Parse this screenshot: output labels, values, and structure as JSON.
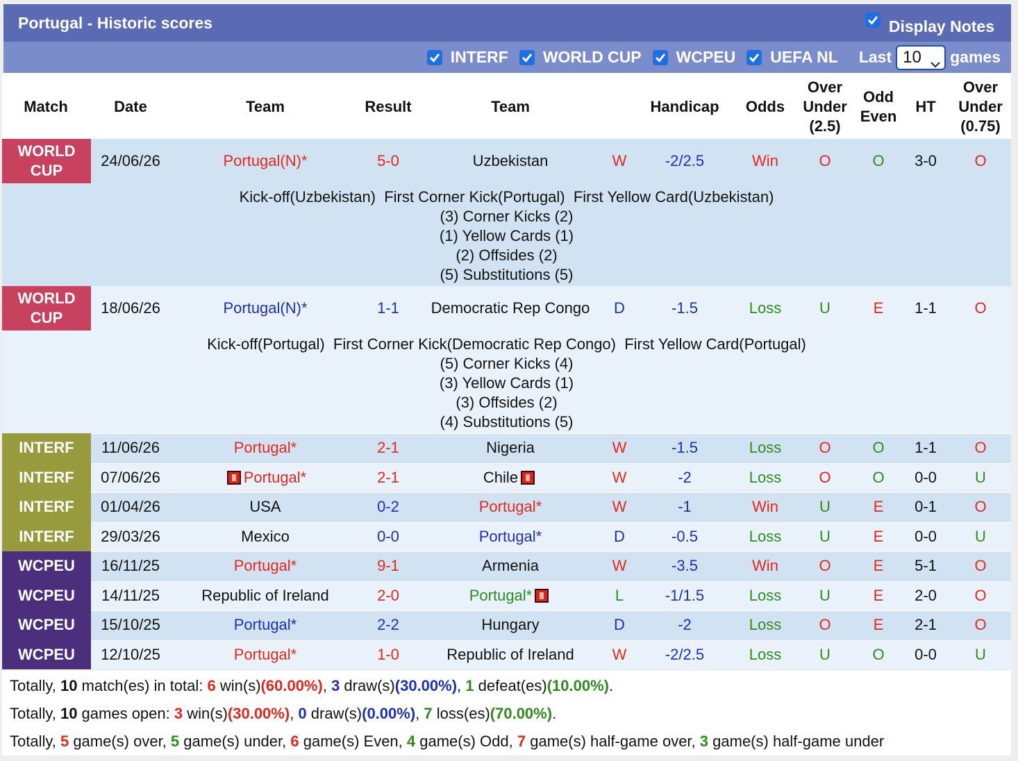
{
  "header": {
    "title": "Portugal - Historic scores",
    "display_notes": "Display Notes"
  },
  "filters": {
    "items": [
      "INTERF",
      "WORLD CUP",
      "WCPEU",
      "UEFA NL"
    ],
    "last": "Last",
    "count": "10",
    "games": "games"
  },
  "palette": {
    "r": "#e2281b",
    "g": "#2e8b1e",
    "b": "#1c2fb8",
    "k": "#111111"
  },
  "table": {
    "columns": [
      "Match",
      "Date",
      "Team",
      "Result",
      "Team",
      "Handicap",
      "Odds",
      "Over Under (2.5)",
      "Odd Even",
      "HT",
      "Over Under (0.75)"
    ],
    "rows": [
      {
        "match": "WORLD CUP",
        "badge_color": "#c8415f",
        "date": "24/06/26",
        "home": "Portugal(N)*",
        "result": "5-0",
        "away": "Uzbekistan",
        "outcome": "W",
        "handicap": "-2/2.5",
        "odds": "Win",
        "ou": "O",
        "oe": "O",
        "ht": "3-0",
        "ou075": "O",
        "tones": {
          "home": "r",
          "away": "k",
          "result": "r",
          "outcome": "r",
          "odds": "r",
          "ou": "r",
          "oe": "g",
          "ou075": "r"
        },
        "notes": [
          "Kick-off(Uzbekistan)  First Corner Kick(Portugal)  First Yellow Card(Uzbekistan)",
          "(3) Corner Kicks (2)",
          "(1) Yellow Cards (1)",
          "(2) Offsides (2)",
          "(5) Substitutions (5)"
        ]
      },
      {
        "match": "WORLD CUP",
        "badge_color": "#c8415f",
        "date": "18/06/26",
        "home": "Portugal(N)*",
        "result": "1-1",
        "away": "Democratic Rep Congo",
        "outcome": "D",
        "handicap": "-1.5",
        "odds": "Loss",
        "ou": "U",
        "oe": "E",
        "ht": "1-1",
        "ou075": "O",
        "tones": {
          "home": "b",
          "away": "k",
          "result": "b",
          "outcome": "b",
          "odds": "g",
          "ou": "g",
          "oe": "r",
          "ou075": "r"
        },
        "notes": [
          "Kick-off(Portugal)  First Corner Kick(Democratic Rep Congo)  First Yellow Card(Portugal)",
          "(5) Corner Kicks (4)",
          "(3) Yellow Cards (1)",
          "(3) Offsides (2)",
          "(4) Substitutions (5)"
        ]
      },
      {
        "match": "INTERF",
        "badge_color": "#979b3d",
        "date": "11/06/26",
        "home": "Portugal*",
        "result": "2-1",
        "away": "Nigeria",
        "outcome": "W",
        "handicap": "-1.5",
        "odds": "Loss",
        "ou": "O",
        "oe": "O",
        "ht": "1-1",
        "ou075": "O",
        "tones": {
          "home": "r",
          "away": "k",
          "result": "r",
          "outcome": "r",
          "odds": "g",
          "ou": "r",
          "oe": "g",
          "ou075": "r"
        }
      },
      {
        "match": "INTERF",
        "badge_color": "#979b3d",
        "date": "07/06/26",
        "home": "Portugal*",
        "result": "2-1",
        "away": "Chile",
        "outcome": "W",
        "handicap": "-2",
        "odds": "Loss",
        "ou": "O",
        "oe": "O",
        "ht": "0-0",
        "ou075": "U",
        "home_card": true,
        "away_card": true,
        "tones": {
          "home": "r",
          "away": "k",
          "result": "r",
          "outcome": "r",
          "odds": "g",
          "ou": "r",
          "oe": "g",
          "ou075": "g"
        }
      },
      {
        "match": "INTERF",
        "badge_color": "#979b3d",
        "date": "01/04/26",
        "home": "USA",
        "result": "0-2",
        "away": "Portugal*",
        "outcome": "W",
        "handicap": "-1",
        "odds": "Win",
        "ou": "U",
        "oe": "E",
        "ht": "0-1",
        "ou075": "O",
        "tones": {
          "home": "k",
          "away": "r",
          "result": "b",
          "outcome": "r",
          "odds": "r",
          "ou": "g",
          "oe": "r",
          "ou075": "r"
        }
      },
      {
        "match": "INTERF",
        "badge_color": "#979b3d",
        "date": "29/03/26",
        "home": "Mexico",
        "result": "0-0",
        "away": "Portugal*",
        "outcome": "D",
        "handicap": "-0.5",
        "odds": "Loss",
        "ou": "U",
        "oe": "E",
        "ht": "0-0",
        "ou075": "U",
        "tones": {
          "home": "k",
          "away": "b",
          "result": "b",
          "outcome": "b",
          "odds": "g",
          "ou": "g",
          "oe": "r",
          "ou075": "g"
        }
      },
      {
        "match": "WCPEU",
        "badge_color": "#4b2f7c",
        "date": "16/11/25",
        "home": "Portugal*",
        "result": "9-1",
        "away": "Armenia",
        "outcome": "W",
        "handicap": "-3.5",
        "odds": "Win",
        "ou": "O",
        "oe": "E",
        "ht": "5-1",
        "ou075": "O",
        "tones": {
          "home": "r",
          "away": "k",
          "result": "r",
          "outcome": "r",
          "odds": "r",
          "ou": "r",
          "oe": "r",
          "ou075": "r"
        }
      },
      {
        "match": "WCPEU",
        "badge_color": "#4b2f7c",
        "date": "14/11/25",
        "home": "Republic of Ireland",
        "result": "2-0",
        "away": "Portugal*",
        "outcome": "L",
        "handicap": "-1/1.5",
        "odds": "Loss",
        "ou": "U",
        "oe": "E",
        "ht": "2-0",
        "ou075": "O",
        "away_card": true,
        "tones": {
          "home": "k",
          "away": "g",
          "result": "r",
          "outcome": "g",
          "odds": "g",
          "ou": "g",
          "oe": "r",
          "ou075": "r"
        }
      },
      {
        "match": "WCPEU",
        "badge_color": "#4b2f7c",
        "date": "15/10/25",
        "home": "Portugal*",
        "result": "2-2",
        "away": "Hungary",
        "outcome": "D",
        "handicap": "-2",
        "odds": "Loss",
        "ou": "O",
        "oe": "E",
        "ht": "2-1",
        "ou075": "O",
        "tones": {
          "home": "b",
          "away": "k",
          "result": "b",
          "outcome": "b",
          "odds": "g",
          "ou": "r",
          "oe": "r",
          "ou075": "r"
        }
      },
      {
        "match": "WCPEU",
        "badge_color": "#4b2f7c",
        "date": "12/10/25",
        "home": "Portugal*",
        "result": "1-0",
        "away": "Republic of Ireland",
        "outcome": "W",
        "handicap": "-2/2.5",
        "odds": "Loss",
        "ou": "U",
        "oe": "O",
        "ht": "0-0",
        "ou075": "U",
        "tones": {
          "home": "r",
          "away": "k",
          "result": "r",
          "outcome": "r",
          "odds": "g",
          "ou": "g",
          "oe": "g",
          "ou075": "g"
        }
      }
    ]
  },
  "summary": [
    [
      {
        "text": "Totally, "
      },
      {
        "text": "10",
        "tone": "k"
      },
      {
        "text": " match(es) in total: "
      },
      {
        "text": "6",
        "tone": "r"
      },
      {
        "text": " win(s)"
      },
      {
        "text": "(60.00%)",
        "tone": "r"
      },
      {
        "text": ", "
      },
      {
        "text": "3",
        "tone": "b"
      },
      {
        "text": " draw(s)"
      },
      {
        "text": "(30.00%)",
        "tone": "b"
      },
      {
        "text": ", "
      },
      {
        "text": "1",
        "tone": "g"
      },
      {
        "text": " defeat(es)"
      },
      {
        "text": "(10.00%)",
        "tone": "g"
      },
      {
        "text": "."
      }
    ],
    [
      {
        "text": "Totally, "
      },
      {
        "text": "10",
        "tone": "k"
      },
      {
        "text": " games open: "
      },
      {
        "text": "3",
        "tone": "r"
      },
      {
        "text": " win(s)"
      },
      {
        "text": "(30.00%)",
        "tone": "r"
      },
      {
        "text": ", "
      },
      {
        "text": "0",
        "tone": "b"
      },
      {
        "text": " draw(s)"
      },
      {
        "text": "(0.00%)",
        "tone": "b"
      },
      {
        "text": ", "
      },
      {
        "text": "7",
        "tone": "g"
      },
      {
        "text": " loss(es)"
      },
      {
        "text": "(70.00%)",
        "tone": "g"
      },
      {
        "text": "."
      }
    ],
    [
      {
        "text": "Totally, "
      },
      {
        "text": "5",
        "tone": "r"
      },
      {
        "text": " game(s) over, "
      },
      {
        "text": "5",
        "tone": "g"
      },
      {
        "text": " game(s) under, "
      },
      {
        "text": "6",
        "tone": "r"
      },
      {
        "text": " game(s) Even, "
      },
      {
        "text": "4",
        "tone": "g"
      },
      {
        "text": " game(s) Odd, "
      },
      {
        "text": "7",
        "tone": "r"
      },
      {
        "text": " game(s) half-game over, "
      },
      {
        "text": "3",
        "tone": "g"
      },
      {
        "text": " game(s) half-game under"
      }
    ]
  ]
}
